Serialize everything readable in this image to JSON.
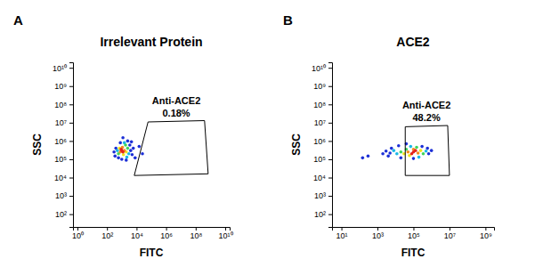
{
  "chart_data": [
    {
      "type": "scatter",
      "panel": "A",
      "title": "Irrelevant Protein",
      "x_label": "FITC",
      "y_label": "SSC",
      "log": true,
      "xlim": [
        0.5,
        20000000000
      ],
      "ylim": [
        20,
        20000000000
      ],
      "xticks": [
        {
          "value": 1,
          "label": "10⁰"
        },
        {
          "value": 100,
          "label": "10²"
        },
        {
          "value": 10000,
          "label": "10⁴"
        },
        {
          "value": 1000000,
          "label": "10⁶"
        },
        {
          "value": 100000000,
          "label": "10⁸"
        },
        {
          "value": 10000000000,
          "label": "10¹⁰"
        }
      ],
      "yticks": [
        {
          "value": 100,
          "label": "10²"
        },
        {
          "value": 1000,
          "label": "10³"
        },
        {
          "value": 10000,
          "label": "10⁴"
        },
        {
          "value": 100000,
          "label": "10⁵"
        },
        {
          "value": 1000000,
          "label": "10⁶"
        },
        {
          "value": 10000000,
          "label": "10⁷"
        },
        {
          "value": 100000000,
          "label": "10⁸"
        },
        {
          "value": 1000000000,
          "label": "10⁹"
        },
        {
          "value": 10000000000,
          "label": "10¹⁰"
        }
      ],
      "x": [
        4000,
        400,
        3500,
        600,
        2500,
        800,
        5000,
        1000,
        300,
        6000,
        1200,
        4500,
        350,
        2000,
        15000,
        8000,
        25000,
        3000,
        500,
        1500,
        2200,
        2500,
        600,
        1800,
        2000,
        700,
        1300,
        1500,
        800,
        1100,
        1000,
        1200,
        900
      ],
      "values": [
        300000,
        400000,
        600000,
        120000,
        1000000,
        800000,
        180000,
        100000,
        250000,
        400000,
        1500000,
        900000,
        150000,
        90000,
        500000,
        120000,
        200000,
        200000,
        300000,
        800000,
        130000,
        400000,
        200000,
        600000,
        250000,
        400000,
        180000,
        300000,
        250000,
        450000,
        300000,
        250000,
        350000
      ],
      "colors": [
        "#1c2fd6",
        "#1c2fd6",
        "#1c2fd6",
        "#1c2fd6",
        "#1c2fd6",
        "#1c2fd6",
        "#1c2fd6",
        "#1c2fd6",
        "#1c2fd6",
        "#1c2fd6",
        "#1c2fd6",
        "#1c2fd6",
        "#1c2fd6",
        "#1c2fd6",
        "#1c2fd6",
        "#1c2fd6",
        "#1c2fd6",
        "#19b8e6",
        "#19b8e6",
        "#19b8e6",
        "#19b8e6",
        "#3fd65a",
        "#3fd65a",
        "#3fd65a",
        "#f2e51b",
        "#f2e51b",
        "#f2e51b",
        "#f58a1f",
        "#f58a1f",
        "#f58a1f",
        "#e3241b",
        "#e3241b",
        "#e3241b"
      ],
      "gate": {
        "name": "Anti-ACE2",
        "value": 0.18,
        "label": "0.18%",
        "x": [
          60000,
          400000000,
          700000000,
          7000
        ],
        "y": [
          11000000,
          13000000,
          16000,
          13000
        ]
      }
    },
    {
      "type": "scatter",
      "panel": "B",
      "title": "ACE2",
      "x_label": "FITC",
      "y_label": "SSC",
      "log": true,
      "xlim": [
        3,
        3000000000
      ],
      "ylim": [
        20,
        20000000000
      ],
      "xticks": [
        {
          "value": 10,
          "label": "10¹"
        },
        {
          "value": 1000,
          "label": "10³"
        },
        {
          "value": 100000,
          "label": "10⁵"
        },
        {
          "value": 10000000,
          "label": "10⁷"
        },
        {
          "value": 1000000000,
          "label": "10⁹"
        }
      ],
      "yticks": [
        {
          "value": 100,
          "label": "10²"
        },
        {
          "value": 1000,
          "label": "10³"
        },
        {
          "value": 10000,
          "label": "10⁴"
        },
        {
          "value": 100000,
          "label": "10⁵"
        },
        {
          "value": 1000000,
          "label": "10⁶"
        },
        {
          "value": 10000000,
          "label": "10⁷"
        },
        {
          "value": 100000000,
          "label": "10⁸"
        },
        {
          "value": 1000000000,
          "label": "10⁹"
        },
        {
          "value": 10000000000,
          "label": "10¹⁰"
        }
      ],
      "x": [
        300,
        150,
        5000,
        3000,
        700000,
        1000000,
        4000,
        20000,
        300000,
        6000,
        15000,
        600000,
        100000,
        2000,
        40000,
        12000,
        500000,
        8000,
        200000,
        70000,
        20000,
        350000,
        150000,
        40000,
        30000,
        250000,
        60000,
        50000,
        180000,
        100000,
        100000,
        80000,
        130000
      ],
      "values": [
        150000,
        120000,
        220000,
        280000,
        200000,
        300000,
        150000,
        120000,
        500000,
        400000,
        550000,
        400000,
        110000,
        200000,
        700000,
        200000,
        280000,
        300000,
        130000,
        500000,
        250000,
        200000,
        450000,
        350000,
        200000,
        300000,
        160000,
        250000,
        220000,
        350000,
        250000,
        200000,
        300000
      ],
      "colors": [
        "#1c2fd6",
        "#1c2fd6",
        "#1c2fd6",
        "#1c2fd6",
        "#1c2fd6",
        "#1c2fd6",
        "#1c2fd6",
        "#1c2fd6",
        "#1c2fd6",
        "#1c2fd6",
        "#1c2fd6",
        "#1c2fd6",
        "#1c2fd6",
        "#1c2fd6",
        "#1c2fd6",
        "#19b8e6",
        "#19b8e6",
        "#19b8e6",
        "#19b8e6",
        "#19b8e6",
        "#3fd65a",
        "#3fd65a",
        "#3fd65a",
        "#3fd65a",
        "#f2e51b",
        "#f2e51b",
        "#f2e51b",
        "#f58a1f",
        "#f58a1f",
        "#f58a1f",
        "#e3241b",
        "#e3241b",
        "#e3241b"
      ],
      "gate": {
        "name": "Anti-ACE2",
        "value": 48.2,
        "label": "48.2%",
        "x": [
          35000,
          8000000,
          10000000,
          35000
        ],
        "y": [
          6000000,
          7000000,
          13000,
          13000
        ]
      }
    }
  ]
}
